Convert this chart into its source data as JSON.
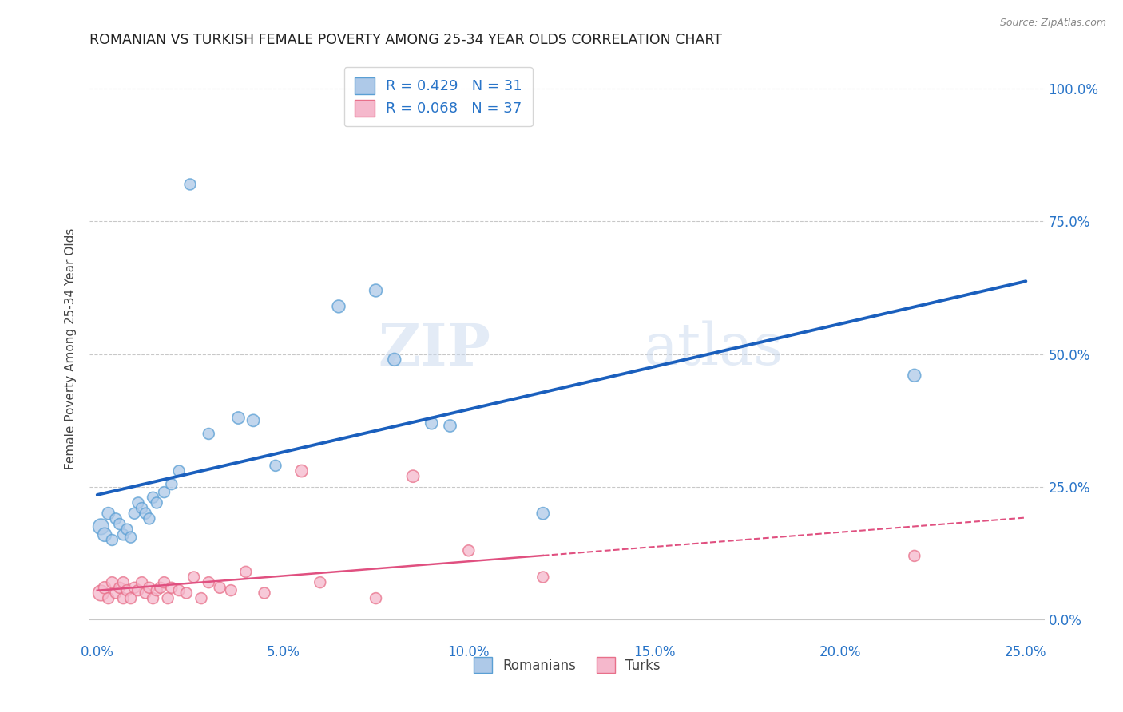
{
  "title": "ROMANIAN VS TURKISH FEMALE POVERTY AMONG 25-34 YEAR OLDS CORRELATION CHART",
  "source": "Source: ZipAtlas.com",
  "xlabel_ticks": [
    "0.0%",
    "5.0%",
    "10.0%",
    "15.0%",
    "20.0%",
    "25.0%"
  ],
  "xlabel_tick_vals": [
    0.0,
    0.05,
    0.1,
    0.15,
    0.2,
    0.25
  ],
  "ylabel_ticks": [
    "0.0%",
    "25.0%",
    "50.0%",
    "75.0%",
    "100.0%"
  ],
  "ylabel_tick_vals": [
    0.0,
    0.25,
    0.5,
    0.75,
    1.0
  ],
  "ylabel": "Female Poverty Among 25-34 Year Olds",
  "xlim": [
    -0.002,
    0.255
  ],
  "ylim": [
    -0.04,
    1.06
  ],
  "romanian_color": "#aec9e8",
  "turkish_color": "#f5b8cc",
  "romanian_edge": "#5a9fd4",
  "turkish_edge": "#e8708a",
  "regression_blue": "#1a5fbd",
  "regression_pink": "#e05080",
  "R_romanian": 0.429,
  "N_romanian": 31,
  "R_turkish": 0.068,
  "N_turkish": 37,
  "legend_label_romanian": "Romanians",
  "legend_label_turkish": "Turks",
  "background_color": "#ffffff",
  "grid_color": "#bbbbbb",
  "title_color": "#222222",
  "axis_label_color": "#2874c8",
  "watermark_zip": "ZIP",
  "watermark_atlas": "atlas",
  "romanian_x": [
    0.001,
    0.002,
    0.003,
    0.004,
    0.005,
    0.006,
    0.007,
    0.008,
    0.009,
    0.01,
    0.011,
    0.012,
    0.013,
    0.014,
    0.015,
    0.016,
    0.018,
    0.02,
    0.022,
    0.025,
    0.03,
    0.038,
    0.042,
    0.048,
    0.065,
    0.075,
    0.08,
    0.09,
    0.095,
    0.12,
    0.22
  ],
  "romanian_y": [
    0.175,
    0.16,
    0.2,
    0.15,
    0.19,
    0.18,
    0.16,
    0.17,
    0.155,
    0.2,
    0.22,
    0.21,
    0.2,
    0.19,
    0.23,
    0.22,
    0.24,
    0.255,
    0.28,
    0.82,
    0.35,
    0.38,
    0.375,
    0.29,
    0.59,
    0.62,
    0.49,
    0.37,
    0.365,
    0.2,
    0.46
  ],
  "romanian_size": [
    200,
    150,
    120,
    100,
    100,
    100,
    100,
    100,
    100,
    100,
    100,
    100,
    100,
    100,
    100,
    100,
    100,
    100,
    100,
    100,
    100,
    120,
    120,
    100,
    130,
    130,
    130,
    120,
    120,
    120,
    130
  ],
  "turkish_x": [
    0.001,
    0.002,
    0.003,
    0.004,
    0.005,
    0.006,
    0.007,
    0.007,
    0.008,
    0.009,
    0.01,
    0.011,
    0.012,
    0.013,
    0.014,
    0.015,
    0.016,
    0.017,
    0.018,
    0.019,
    0.02,
    0.022,
    0.024,
    0.026,
    0.028,
    0.03,
    0.033,
    0.036,
    0.04,
    0.045,
    0.055,
    0.06,
    0.075,
    0.085,
    0.1,
    0.12,
    0.22
  ],
  "turkish_y": [
    0.05,
    0.06,
    0.04,
    0.07,
    0.05,
    0.06,
    0.04,
    0.07,
    0.055,
    0.04,
    0.06,
    0.055,
    0.07,
    0.05,
    0.06,
    0.04,
    0.055,
    0.06,
    0.07,
    0.04,
    0.06,
    0.055,
    0.05,
    0.08,
    0.04,
    0.07,
    0.06,
    0.055,
    0.09,
    0.05,
    0.28,
    0.07,
    0.04,
    0.27,
    0.13,
    0.08,
    0.12
  ],
  "turkish_size": [
    200,
    120,
    100,
    100,
    100,
    100,
    100,
    100,
    100,
    100,
    100,
    100,
    100,
    100,
    100,
    100,
    100,
    100,
    100,
    100,
    100,
    100,
    100,
    100,
    100,
    100,
    100,
    100,
    100,
    100,
    120,
    100,
    100,
    120,
    100,
    100,
    100
  ]
}
